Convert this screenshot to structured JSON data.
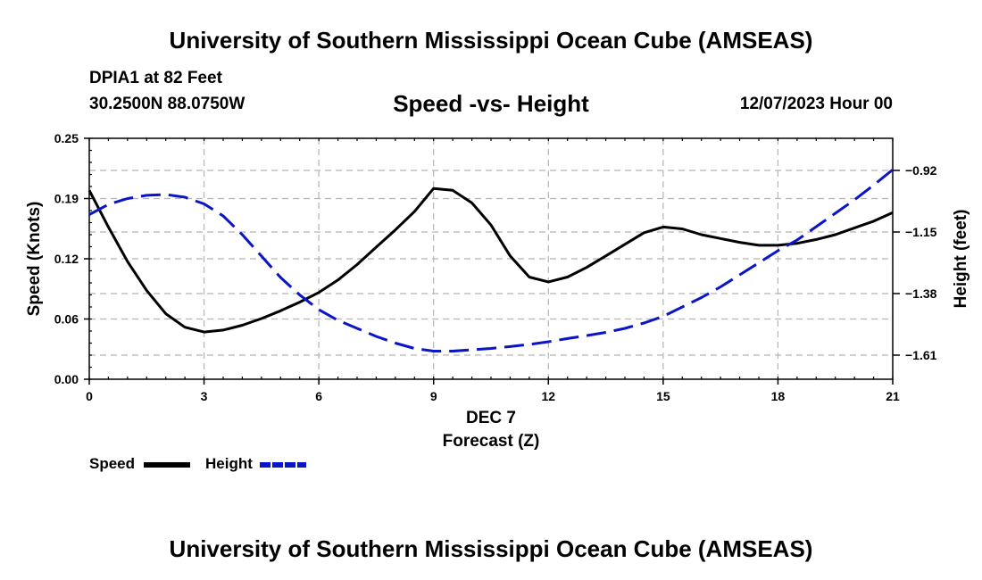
{
  "header": {
    "title": "University of Southern Mississippi Ocean Cube (AMSEAS)",
    "station": "DPIA1 at 82 Feet",
    "coords": "30.2500N  88.0750W",
    "chart_title": "Speed -vs- Height",
    "date": "12/07/2023 Hour 00"
  },
  "footer": {
    "title": "University of Southern Mississippi Ocean Cube (AMSEAS)"
  },
  "legend": {
    "speed_label": "Speed",
    "height_label": "Height"
  },
  "colors": {
    "speed": "#000000",
    "height": "#0a14c8",
    "grid": "#b4b4b4"
  },
  "chart_data": {
    "type": "line",
    "title": "Speed -vs- Height",
    "xlabel": "Forecast (Z)",
    "xsublabel": "DEC 7",
    "ylabel": "Speed (Knots)",
    "y2label": "Height (feet)",
    "xlim": [
      0,
      21
    ],
    "ylim": [
      0,
      0.25
    ],
    "y2lim": [
      -1.7,
      -0.8
    ],
    "xticks": [
      0,
      3,
      6,
      9,
      12,
      15,
      18,
      21
    ],
    "xtick_labels": [
      "0",
      "3",
      "6",
      "9",
      "12",
      "15",
      "18",
      "21"
    ],
    "yticks": [
      0,
      0.0625,
      0.125,
      0.1875,
      0.25
    ],
    "ytick_labels": [
      "0.00",
      "0.06",
      "0.12",
      "0.19",
      "0.25"
    ],
    "y2ticks": [
      -1.61,
      -1.38,
      -1.15,
      -0.92
    ],
    "y2tick_labels": [
      "−1.61",
      "−1.38",
      "−1.15",
      "−0.92"
    ],
    "grid": true,
    "legend_position": "bottom-left",
    "series": [
      {
        "name": "Speed",
        "axis": "left",
        "style": "solid",
        "x": [
          0,
          0.5,
          1,
          1.5,
          2,
          2.5,
          3,
          3.5,
          4,
          4.5,
          5,
          5.5,
          6,
          6.5,
          7,
          7.5,
          8,
          8.5,
          9,
          9.5,
          10,
          10.5,
          11,
          11.5,
          12,
          12.5,
          13,
          13.5,
          14,
          14.5,
          15,
          15.5,
          16,
          16.5,
          17,
          17.5,
          18,
          18.5,
          19,
          19.5,
          20,
          20.5,
          21
        ],
        "values": [
          0.196,
          0.158,
          0.122,
          0.092,
          0.068,
          0.054,
          0.049,
          0.051,
          0.056,
          0.063,
          0.071,
          0.08,
          0.09,
          0.103,
          0.119,
          0.137,
          0.155,
          0.174,
          0.198,
          0.196,
          0.183,
          0.16,
          0.128,
          0.106,
          0.101,
          0.106,
          0.116,
          0.128,
          0.14,
          0.152,
          0.158,
          0.156,
          0.15,
          0.146,
          0.142,
          0.139,
          0.139,
          0.141,
          0.145,
          0.15,
          0.157,
          0.164,
          0.173
        ]
      },
      {
        "name": "Height",
        "axis": "right",
        "style": "dashed",
        "x": [
          0,
          0.5,
          1,
          1.5,
          2,
          2.5,
          3,
          3.5,
          4,
          4.5,
          5,
          5.5,
          6,
          6.5,
          7,
          7.5,
          8,
          8.5,
          9,
          9.5,
          10,
          10.5,
          11,
          11.5,
          12,
          12.5,
          13,
          13.5,
          14,
          14.5,
          15,
          15.5,
          16,
          16.5,
          17,
          17.5,
          18,
          18.5,
          19,
          19.5,
          20,
          20.5,
          21
        ],
        "values": [
          -1.085,
          -1.047,
          -1.025,
          -1.013,
          -1.01,
          -1.02,
          -1.045,
          -1.09,
          -1.16,
          -1.24,
          -1.32,
          -1.385,
          -1.44,
          -1.48,
          -1.51,
          -1.54,
          -1.565,
          -1.585,
          -1.595,
          -1.595,
          -1.59,
          -1.585,
          -1.578,
          -1.57,
          -1.56,
          -1.548,
          -1.537,
          -1.525,
          -1.51,
          -1.49,
          -1.465,
          -1.43,
          -1.395,
          -1.355,
          -1.31,
          -1.265,
          -1.22,
          -1.18,
          -1.13,
          -1.08,
          -1.03,
          -0.975,
          -0.917
        ]
      }
    ]
  }
}
